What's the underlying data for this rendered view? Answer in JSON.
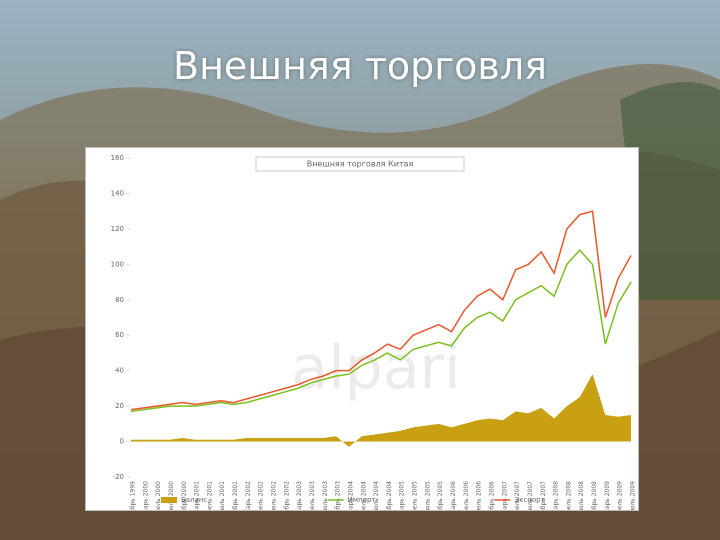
{
  "slide_title": "Внешняя торговля",
  "chart_data": {
    "type": "line",
    "title": "Внешняя торговля Китая",
    "watermark": "alpari",
    "categories": [
      "Октябрь 1999",
      "Январь 2000",
      "Апрель 2000",
      "Июль 2000",
      "Октябрь 2000",
      "Январь 2001",
      "Апрель 2001",
      "Июль 2001",
      "Октябрь 2001",
      "Январь 2002",
      "Апрель 2002",
      "Июль 2002",
      "Октябрь 2002",
      "Январь 2003",
      "Апрель 2003",
      "Июль 2003",
      "Октябрь 2003",
      "Январь 2004",
      "Апрель 2004",
      "Июль 2004",
      "Октябрь 2004",
      "Январь 2005",
      "Апрель 2005",
      "Июль 2005",
      "Октябрь 2005",
      "Январь 2006",
      "Апрель 2006",
      "Июль 2006",
      "Октябрь 2006",
      "Январь 2007",
      "Апрель 2007",
      "Июль 2007",
      "Октябрь 2007",
      "Январь 2008",
      "Апрель 2008",
      "Июль 2008",
      "Октябрь 2008",
      "Январь 2009",
      "Апрель 2009",
      "Июль 2009"
    ],
    "series": [
      {
        "name": "Баланс",
        "type": "area",
        "color": "#c9a011",
        "values": [
          1,
          1,
          1,
          1,
          2,
          1,
          1,
          1,
          1,
          2,
          2,
          2,
          2,
          2,
          2,
          2,
          3,
          -3,
          3,
          4,
          5,
          6,
          8,
          9,
          10,
          8,
          10,
          12,
          13,
          12,
          17,
          16,
          19,
          13,
          20,
          25,
          38,
          15,
          14,
          15
        ]
      },
      {
        "name": "Импорт",
        "type": "line",
        "color": "#7cbf1e",
        "values": [
          17,
          18,
          19,
          20,
          20,
          20,
          21,
          22,
          21,
          22,
          24,
          26,
          28,
          30,
          33,
          35,
          37,
          38,
          43,
          46,
          50,
          46,
          52,
          54,
          56,
          54,
          64,
          70,
          73,
          68,
          80,
          84,
          88,
          82,
          100,
          108,
          100,
          55,
          78,
          90
        ]
      },
      {
        "name": "Экспорт",
        "type": "line",
        "color": "#e8562a",
        "values": [
          18,
          19,
          20,
          21,
          22,
          21,
          22,
          23,
          22,
          24,
          26,
          28,
          30,
          32,
          35,
          37,
          40,
          40,
          46,
          50,
          55,
          52,
          60,
          63,
          66,
          62,
          74,
          82,
          86,
          80,
          97,
          100,
          107,
          95,
          120,
          128,
          130,
          70,
          92,
          105
        ]
      }
    ],
    "ylim": [
      -20,
      160
    ],
    "yticks": [
      -20,
      0,
      20,
      40,
      60,
      80,
      100,
      120,
      140,
      160
    ],
    "legend": "bottom"
  }
}
